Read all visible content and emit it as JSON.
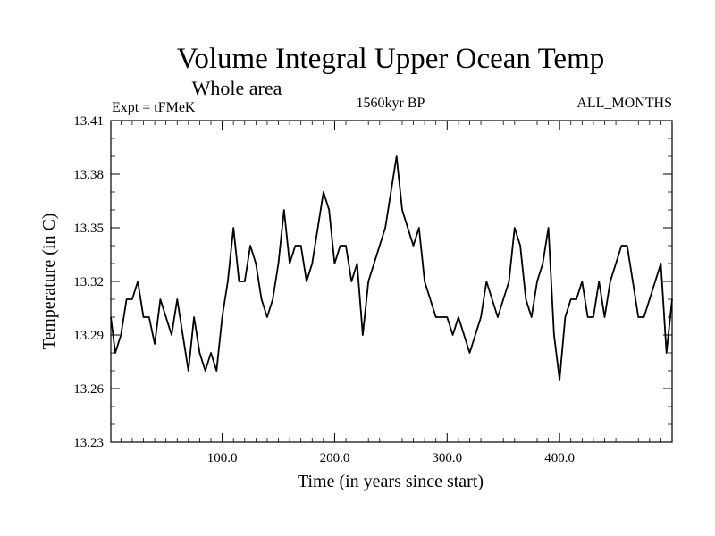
{
  "chart_data": {
    "type": "line",
    "title": "Volume Integral Upper Ocean Temp",
    "subtitle": "Whole area",
    "left_label": "Expt = tFMeK",
    "center_label": "1560kyr BP",
    "right_label": "ALL_MONTHS",
    "xlabel": "Time (in years since start)",
    "ylabel": "Temperature (in C)",
    "xlim": [
      1,
      500
    ],
    "ylim": [
      13.23,
      13.41
    ],
    "xticks": [
      100,
      200,
      300,
      400
    ],
    "xtick_labels": [
      "100.0",
      "200.0",
      "300.0",
      "400.0"
    ],
    "yticks": [
      13.23,
      13.26,
      13.29,
      13.32,
      13.35,
      13.38,
      13.41
    ],
    "ytick_labels": [
      "13.23",
      "13.26",
      "13.29",
      "13.32",
      "13.35",
      "13.38",
      "13.41"
    ],
    "grid": false,
    "series": [
      {
        "name": "Temperature",
        "color": "#000000",
        "x": [
          1,
          5,
          10,
          15,
          20,
          25,
          30,
          35,
          40,
          45,
          50,
          55,
          60,
          65,
          70,
          75,
          80,
          85,
          90,
          95,
          100,
          105,
          110,
          115,
          120,
          125,
          130,
          135,
          140,
          145,
          150,
          155,
          160,
          165,
          170,
          175,
          180,
          185,
          190,
          195,
          200,
          205,
          210,
          215,
          220,
          225,
          230,
          235,
          240,
          245,
          250,
          255,
          260,
          265,
          270,
          275,
          280,
          285,
          290,
          295,
          300,
          305,
          310,
          315,
          320,
          325,
          330,
          335,
          340,
          345,
          350,
          355,
          360,
          365,
          370,
          375,
          380,
          385,
          390,
          395,
          400,
          405,
          410,
          415,
          420,
          425,
          430,
          435,
          440,
          445,
          450,
          455,
          460,
          465,
          470,
          475,
          480,
          485,
          490,
          495,
          500
        ],
        "values": [
          13.3,
          13.28,
          13.29,
          13.31,
          13.31,
          13.32,
          13.3,
          13.3,
          13.285,
          13.31,
          13.3,
          13.29,
          13.31,
          13.29,
          13.27,
          13.3,
          13.28,
          13.27,
          13.28,
          13.27,
          13.3,
          13.32,
          13.35,
          13.32,
          13.32,
          13.34,
          13.33,
          13.31,
          13.3,
          13.31,
          13.33,
          13.36,
          13.33,
          13.34,
          13.34,
          13.32,
          13.33,
          13.35,
          13.37,
          13.36,
          13.33,
          13.34,
          13.34,
          13.32,
          13.33,
          13.29,
          13.32,
          13.33,
          13.34,
          13.35,
          13.37,
          13.39,
          13.36,
          13.35,
          13.34,
          13.35,
          13.32,
          13.31,
          13.3,
          13.3,
          13.3,
          13.29,
          13.3,
          13.29,
          13.28,
          13.29,
          13.3,
          13.32,
          13.31,
          13.3,
          13.31,
          13.32,
          13.35,
          13.34,
          13.31,
          13.3,
          13.32,
          13.33,
          13.35,
          13.29,
          13.265,
          13.3,
          13.31,
          13.31,
          13.32,
          13.3,
          13.3,
          13.32,
          13.3,
          13.32,
          13.33,
          13.34,
          13.34,
          13.32,
          13.3,
          13.3,
          13.31,
          13.32,
          13.33,
          13.28,
          13.31
        ]
      }
    ]
  }
}
